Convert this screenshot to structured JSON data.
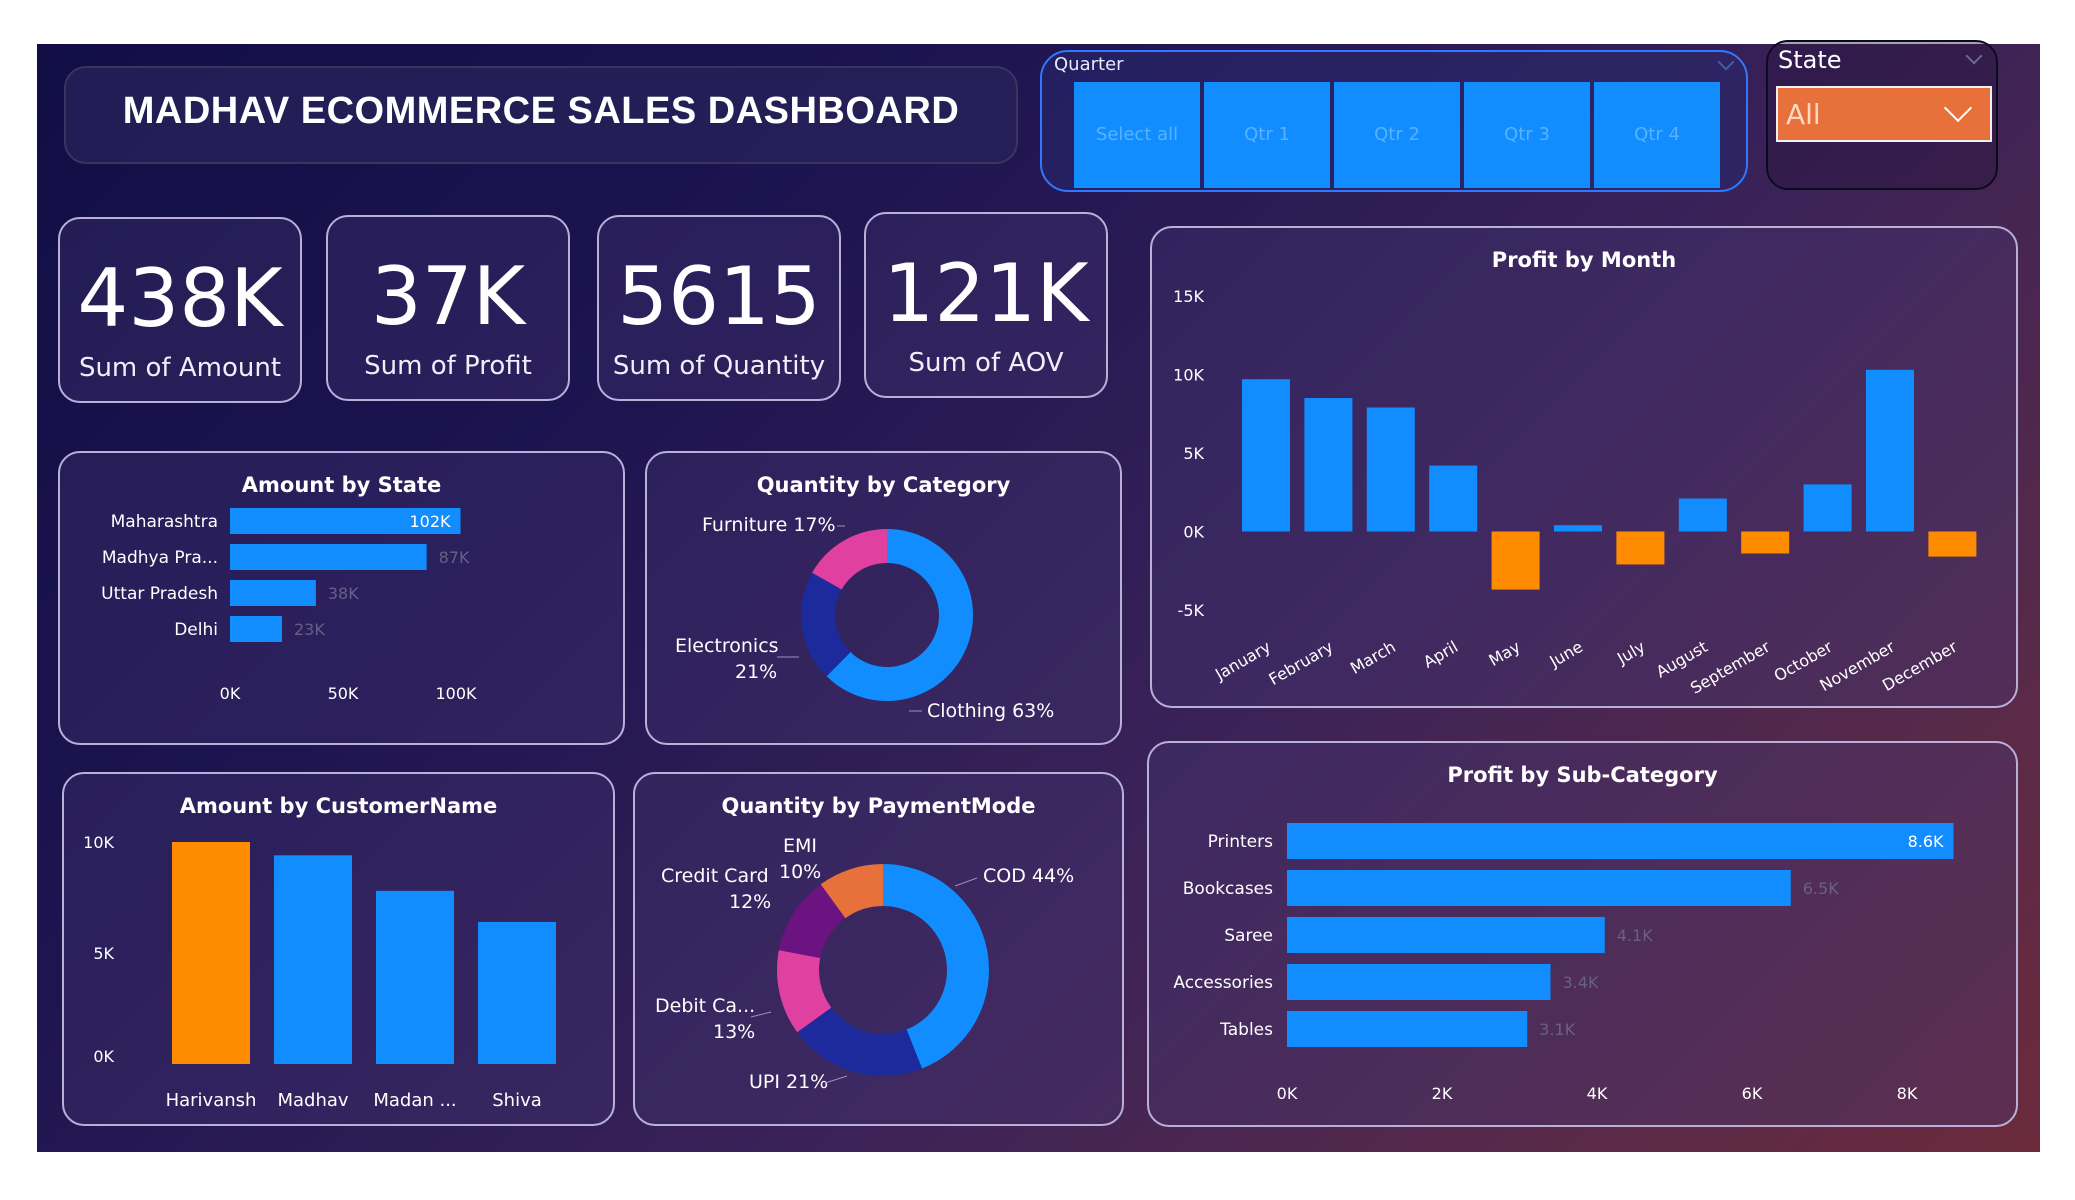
{
  "dashboard": {
    "title": "MADHAV ECOMMERCE SALES DASHBOARD"
  },
  "slicers": {
    "quarter": {
      "label": "Quarter",
      "options": [
        "Select all",
        "Qtr 1",
        "Qtr 2",
        "Qtr 3",
        "Qtr 4"
      ]
    },
    "state": {
      "label": "State",
      "selected": "All"
    }
  },
  "kpis": [
    {
      "value": "438K",
      "label": "Sum of Amount"
    },
    {
      "value": "37K",
      "label": "Sum of Profit"
    },
    {
      "value": "5615",
      "label": "Sum of Quantity"
    },
    {
      "value": "121K",
      "label": "Sum of AOV"
    }
  ],
  "colors": {
    "blue": "#118dff",
    "orange": "#ff8c00",
    "navy": "#1c2a9c",
    "pink": "#e040a0",
    "purple": "#6b1380",
    "coral": "#e8703a",
    "dim_label": "#6a5f86"
  },
  "chart_data": [
    {
      "id": "amount_by_state",
      "type": "bar",
      "orientation": "horizontal",
      "title": "Amount by State",
      "categories": [
        "Maharashtra",
        "Madhya Pra...",
        "Uttar Pradesh",
        "Delhi"
      ],
      "values": [
        102000,
        87000,
        38000,
        23000
      ],
      "data_labels": [
        "102K",
        "87K",
        "38K",
        "23K"
      ],
      "xlim": [
        0,
        100000
      ],
      "ticks": [
        0,
        50000,
        100000
      ],
      "tick_labels": [
        "0K",
        "50K",
        "100K"
      ]
    },
    {
      "id": "quantity_by_category",
      "type": "pie",
      "donut": true,
      "title": "Quantity by Category",
      "categories": [
        "Clothing",
        "Electronics",
        "Furniture"
      ],
      "values": [
        63,
        21,
        17
      ],
      "labels": [
        "Clothing 63%",
        "Electronics",
        "21%",
        "Furniture 17%"
      ],
      "colors": [
        "#118dff",
        "#1c2a9c",
        "#e040a0"
      ]
    },
    {
      "id": "profit_by_month",
      "type": "bar",
      "title": "Profit by Month",
      "categories": [
        "January",
        "February",
        "March",
        "April",
        "May",
        "June",
        "July",
        "August",
        "September",
        "October",
        "November",
        "December"
      ],
      "values": [
        9700,
        8500,
        7900,
        4200,
        -3700,
        400,
        -2100,
        2100,
        -1400,
        3000,
        10300,
        -1600
      ],
      "ylim": [
        -5000,
        15000
      ],
      "ticks": [
        -5000,
        0,
        5000,
        10000,
        15000
      ],
      "tick_labels": [
        "-5K",
        "0K",
        "5K",
        "10K",
        "15K"
      ]
    },
    {
      "id": "amount_by_customer",
      "type": "bar",
      "title": "Amount by CustomerName",
      "categories": [
        "Harivansh",
        "Madhav",
        "Madan ...",
        "Shiva"
      ],
      "values": [
        10000,
        9400,
        7800,
        6400
      ],
      "ylim": [
        0,
        10000
      ],
      "ticks": [
        0,
        5000,
        10000
      ],
      "tick_labels": [
        "0K",
        "5K",
        "10K"
      ]
    },
    {
      "id": "quantity_by_payment",
      "type": "pie",
      "donut": true,
      "title": "Quantity by PaymentMode",
      "categories": [
        "COD",
        "UPI",
        "Debit Card",
        "Credit Card",
        "EMI"
      ],
      "values": [
        44,
        21,
        13,
        12,
        10
      ],
      "labels": [
        "COD 44%",
        "UPI 21%",
        "Debit Ca...",
        "13%",
        "Credit Card",
        "12%",
        "EMI",
        "10%"
      ],
      "colors": [
        "#118dff",
        "#1c2a9c",
        "#e040a0",
        "#6b1380",
        "#e8703a"
      ]
    },
    {
      "id": "profit_by_subcategory",
      "type": "bar",
      "orientation": "horizontal",
      "title": "Profit by Sub-Category",
      "categories": [
        "Printers",
        "Bookcases",
        "Saree",
        "Accessories",
        "Tables"
      ],
      "values": [
        8600,
        6500,
        4100,
        3400,
        3100
      ],
      "data_labels": [
        "8.6K",
        "6.5K",
        "4.1K",
        "3.4K",
        "3.1K"
      ],
      "xlim": [
        0,
        8000
      ],
      "ticks": [
        0,
        2000,
        4000,
        6000,
        8000
      ],
      "tick_labels": [
        "0K",
        "2K",
        "4K",
        "6K",
        "8K"
      ]
    }
  ]
}
